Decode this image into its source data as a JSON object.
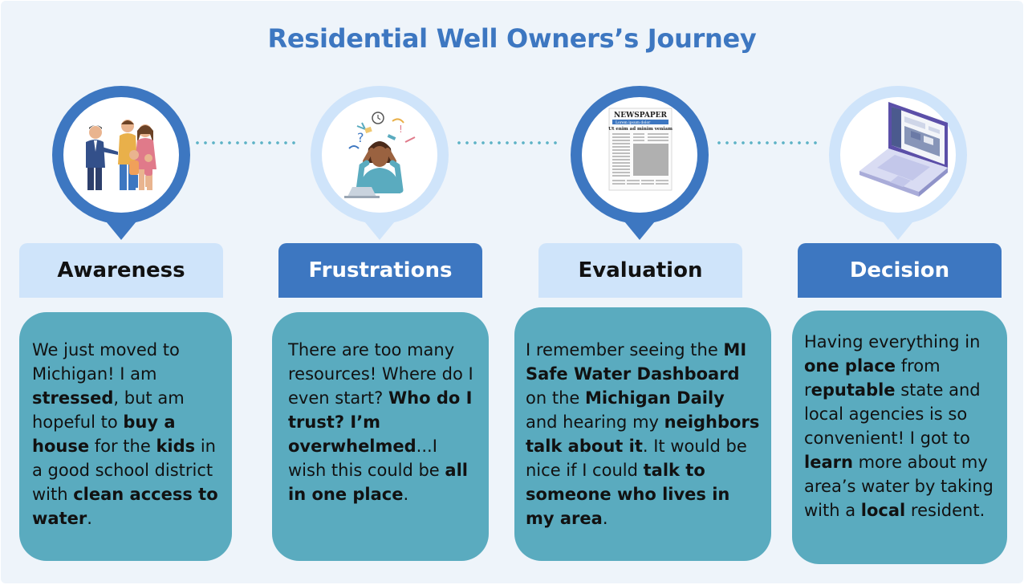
{
  "title": "Residential Well Owners’s Journey",
  "stages": [
    {
      "label": "Awareness",
      "icon": "family-handshake-icon",
      "segments": [
        {
          "t": "We just moved to Michigan! I am ",
          "b": false
        },
        {
          "t": "stressed",
          "b": true
        },
        {
          "t": ", but am hopeful to ",
          "b": false
        },
        {
          "t": "buy a house",
          "b": true
        },
        {
          "t": " for the ",
          "b": false
        },
        {
          "t": "kids",
          "b": true
        },
        {
          "t": " in a good school district with ",
          "b": false
        },
        {
          "t": "clean access to water",
          "b": true
        },
        {
          "t": ".",
          "b": false
        }
      ]
    },
    {
      "label": "Frustrations",
      "icon": "stressed-person-icon",
      "segments": [
        {
          "t": "There are too many resources! Where do I even start? ",
          "b": false
        },
        {
          "t": "Who do I trust? I’m overwhelmed",
          "b": true
        },
        {
          "t": "...I wish this could be ",
          "b": false
        },
        {
          "t": "all in one place",
          "b": true
        },
        {
          "t": ".",
          "b": false
        }
      ]
    },
    {
      "label": "Evaluation",
      "icon": "newspaper-icon",
      "newspaper": {
        "masthead": "NEWSPAPER",
        "subtitle": "Lorem ipsum dolor",
        "headline": "Ut enim ad minim veniam"
      },
      "segments": [
        {
          "t": "I remember seeing the ",
          "b": false
        },
        {
          "t": "MI Safe Water Dashboard",
          "b": true
        },
        {
          "t": " on the ",
          "b": false
        },
        {
          "t": "Michigan Daily",
          "b": true
        },
        {
          "t": " and hearing my ",
          "b": false
        },
        {
          "t": "neighbors talk about it",
          "b": true
        },
        {
          "t": ". It would be nice if I could ",
          "b": false
        },
        {
          "t": "talk to someone who lives in my area",
          "b": true
        },
        {
          "t": ".",
          "b": false
        }
      ]
    },
    {
      "label": "Decision",
      "icon": "laptop-dashboard-icon",
      "segments": [
        {
          "t": "Having everything in ",
          "b": false
        },
        {
          "t": "one place",
          "b": true
        },
        {
          "t": " from r",
          "b": false
        },
        {
          "t": "eputable",
          "b": true
        },
        {
          "t": " state and local agencies is so convenient! I got to ",
          "b": false
        },
        {
          "t": "learn",
          "b": true
        },
        {
          "t": " more about my area’s water by taking with a ",
          "b": false
        },
        {
          "t": "local",
          "b": true
        },
        {
          "t": " resident.",
          "b": false
        }
      ]
    }
  ],
  "colors": {
    "background": "#eef4fa",
    "title": "#3d77c1",
    "header_light": "#cfe4fa",
    "header_dark": "#3d77c1",
    "card": "#5aabbf",
    "pin_dark": "#3d77c1",
    "pin_light": "#cfe4fa",
    "connector": "#5db3c6"
  }
}
